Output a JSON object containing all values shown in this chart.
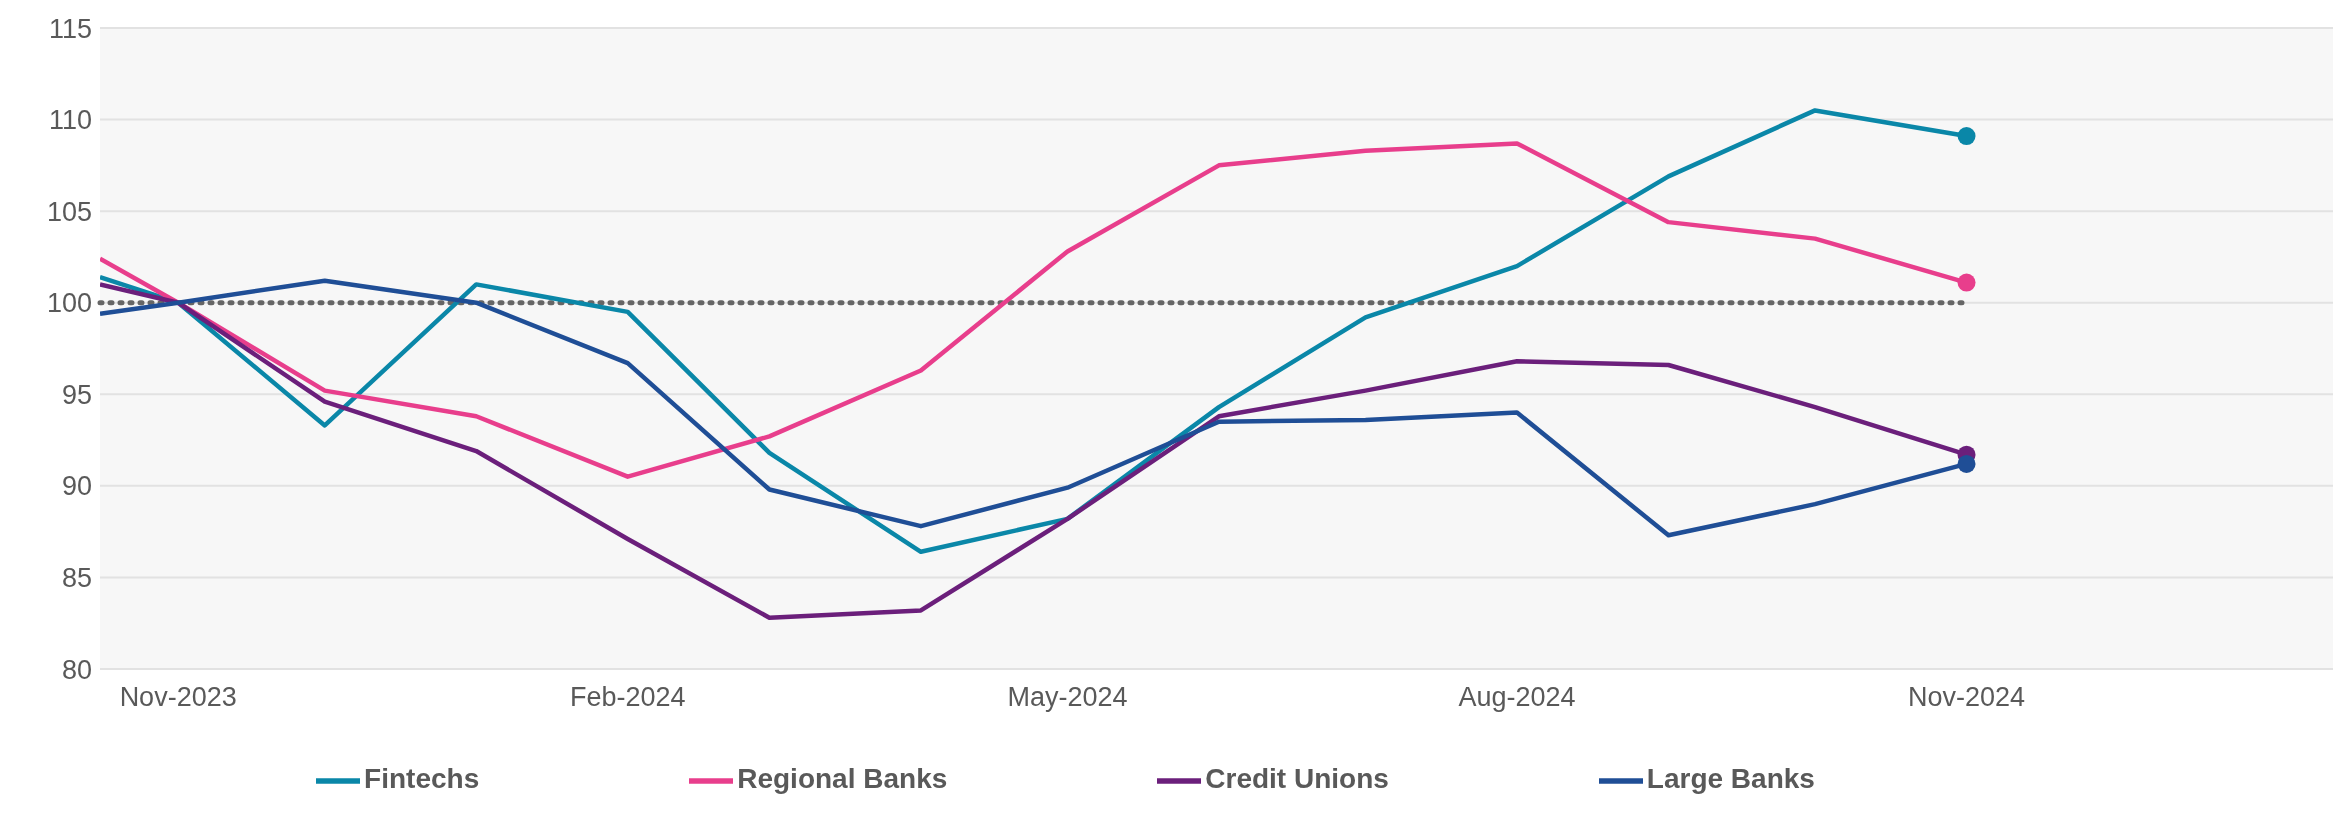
{
  "chart_data": {
    "type": "line",
    "x": [
      "2023-10-16",
      "2023-11",
      "2023-12",
      "2024-01",
      "2024-02",
      "2024-03",
      "2024-04",
      "2024-05",
      "2024-06",
      "2024-07",
      "2024-08",
      "2024-09",
      "2024-10",
      "2024-11"
    ],
    "series": [
      {
        "name": "Fintechs",
        "color": "#0a87a8",
        "values": [
          101.4,
          100,
          93.3,
          101.0,
          99.5,
          91.8,
          86.4,
          88.2,
          94.3,
          99.2,
          102.0,
          106.9,
          110.5,
          109.1
        ]
      },
      {
        "name": "Regional Banks",
        "color": "#e83e8c",
        "values": [
          102.4,
          100,
          95.2,
          93.8,
          90.5,
          92.7,
          96.3,
          102.8,
          107.5,
          108.3,
          108.7,
          104.4,
          103.5,
          101.1
        ]
      },
      {
        "name": "Credit Unions",
        "color": "#6b1f7b",
        "values": [
          101.0,
          100,
          94.6,
          91.9,
          87.1,
          82.8,
          83.2,
          88.2,
          93.8,
          95.2,
          96.8,
          96.6,
          94.3,
          91.7
        ]
      },
      {
        "name": "Large Banks",
        "color": "#1f4e96",
        "values": [
          99.4,
          100,
          101.2,
          100.0,
          96.7,
          89.8,
          87.8,
          89.9,
          93.5,
          93.6,
          94.0,
          87.3,
          89.0,
          91.2
        ]
      },
      {
        "type": "scatter",
        "color": "#0a87a8",
        "x": [
          "2024-11"
        ],
        "values": [
          109.1
        ]
      },
      {
        "type": "scatter",
        "color": "#e83e8c",
        "x": [
          "2024-11"
        ],
        "values": [
          101.1
        ]
      },
      {
        "type": "scatter",
        "color": "#6b1f7b",
        "x": [
          "2024-11"
        ],
        "values": [
          91.7
        ]
      },
      {
        "type": "scatter",
        "color": "#1f4e96",
        "x": [
          "2024-11"
        ],
        "values": [
          91.2
        ]
      }
    ],
    "xlim": [
      "2023-10-16",
      "2025-01-15"
    ],
    "xticks": [
      {
        "value": "2023-11-01",
        "label": "Nov-2023"
      },
      {
        "value": "2024-02-01",
        "label": "Feb-2024"
      },
      {
        "value": "2024-05-01",
        "label": "May-2024"
      },
      {
        "value": "2024-08-01",
        "label": "Aug-2024"
      },
      {
        "value": "2024-11-01",
        "label": "Nov-2024"
      }
    ],
    "ylim": [
      80,
      115
    ],
    "yticks": [
      80,
      85,
      90,
      95,
      100,
      105,
      110,
      115
    ],
    "ref_lines": [
      {
        "axis": "y",
        "value": 100,
        "label": null,
        "color": "#666666",
        "line_style": "dotted"
      }
    ],
    "grid": "y",
    "legend": "bottom",
    "line_style": "solid"
  }
}
